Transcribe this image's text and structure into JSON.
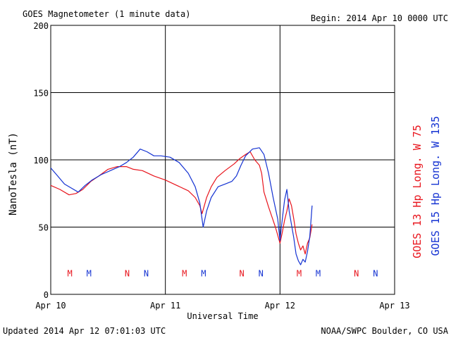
{
  "chart_data": {
    "type": "line",
    "title": "GOES Magnetometer (1 minute data)",
    "begin": "Begin:  2014 Apr 10 0000 UTC",
    "xlabel": "Universal Time",
    "ylabel": "NanoTesla (nT)",
    "footer_left": "Updated 2014 Apr 12 07:01:03 UTC",
    "footer_right": "NOAA/SWPC Boulder, CO USA",
    "x_unit": "days since Apr 10 0000 UTC",
    "xlim": [
      0,
      3
    ],
    "ylim": [
      0,
      200
    ],
    "x_ticks": [
      {
        "x": 0,
        "label": "Apr 10"
      },
      {
        "x": 1,
        "label": "Apr 11"
      },
      {
        "x": 2,
        "label": "Apr 12"
      },
      {
        "x": 3,
        "label": "Apr 13"
      }
    ],
    "y_ticks": [
      0,
      50,
      100,
      150,
      200
    ],
    "grid": true,
    "series": [
      {
        "name": "GOES 13 Hp  Long. W  75",
        "color": "#e8141c",
        "x": [
          0.0,
          0.08,
          0.16,
          0.22,
          0.28,
          0.35,
          0.42,
          0.5,
          0.58,
          0.66,
          0.72,
          0.8,
          0.9,
          1.0,
          1.1,
          1.2,
          1.26,
          1.3,
          1.32,
          1.34,
          1.36,
          1.4,
          1.45,
          1.52,
          1.6,
          1.65,
          1.7,
          1.74,
          1.78,
          1.82,
          1.84,
          1.86,
          1.9,
          1.94,
          1.96,
          1.98,
          2.0,
          2.02,
          2.04,
          2.06,
          2.08,
          2.1,
          2.12,
          2.14,
          2.16,
          2.18,
          2.2,
          2.22,
          2.24,
          2.26,
          2.28
        ],
        "y": [
          81,
          78,
          74,
          75,
          78,
          84,
          88,
          93,
          95,
          95,
          93,
          92,
          88,
          85,
          81,
          77,
          72,
          66,
          60,
          66,
          72,
          80,
          87,
          92,
          97,
          101,
          104,
          106,
          100,
          96,
          90,
          76,
          65,
          55,
          50,
          44,
          38,
          46,
          55,
          62,
          71,
          66,
          56,
          45,
          38,
          33,
          36,
          30,
          38,
          42,
          52
        ]
      },
      {
        "name": "GOES 15 Hp  Long. W 135",
        "color": "#1432d2",
        "x": [
          0.0,
          0.06,
          0.12,
          0.18,
          0.24,
          0.3,
          0.36,
          0.44,
          0.52,
          0.6,
          0.66,
          0.72,
          0.78,
          0.84,
          0.9,
          0.96,
          1.04,
          1.12,
          1.2,
          1.26,
          1.3,
          1.32,
          1.33,
          1.36,
          1.4,
          1.46,
          1.52,
          1.58,
          1.62,
          1.66,
          1.7,
          1.76,
          1.82,
          1.86,
          1.9,
          1.94,
          1.98,
          2.0,
          2.02,
          2.04,
          2.06,
          2.08,
          2.1,
          2.12,
          2.14,
          2.16,
          2.18,
          2.2,
          2.22,
          2.24,
          2.26,
          2.28
        ],
        "y": [
          94,
          88,
          82,
          79,
          76,
          81,
          85,
          89,
          92,
          95,
          98,
          102,
          108,
          106,
          103,
          103,
          102,
          98,
          90,
          80,
          68,
          56,
          50,
          62,
          72,
          80,
          82,
          84,
          88,
          96,
          103,
          108,
          109,
          104,
          90,
          72,
          56,
          40,
          56,
          70,
          78,
          62,
          52,
          42,
          30,
          25,
          22,
          26,
          24,
          32,
          43,
          66
        ]
      }
    ],
    "markers": [
      {
        "x": 0.1667,
        "label": "M",
        "color": "#e8141c"
      },
      {
        "x": 0.3333,
        "label": "M",
        "color": "#1432d2"
      },
      {
        "x": 0.6667,
        "label": "N",
        "color": "#e8141c"
      },
      {
        "x": 0.8333,
        "label": "N",
        "color": "#1432d2"
      },
      {
        "x": 1.1667,
        "label": "M",
        "color": "#e8141c"
      },
      {
        "x": 1.3333,
        "label": "M",
        "color": "#1432d2"
      },
      {
        "x": 1.6667,
        "label": "N",
        "color": "#e8141c"
      },
      {
        "x": 1.8333,
        "label": "N",
        "color": "#1432d2"
      },
      {
        "x": 2.1667,
        "label": "M",
        "color": "#e8141c"
      },
      {
        "x": 2.3333,
        "label": "M",
        "color": "#1432d2"
      },
      {
        "x": 2.6667,
        "label": "N",
        "color": "#e8141c"
      },
      {
        "x": 2.8333,
        "label": "N",
        "color": "#1432d2"
      }
    ],
    "marker_level": 16
  }
}
